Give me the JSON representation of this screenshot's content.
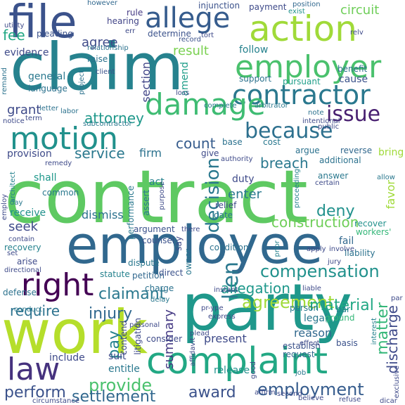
{
  "words": [
    {
      "text": "contract",
      "color": "#5ec962"
    },
    {
      "text": "employee",
      "color": "#31688e"
    },
    {
      "text": "claim",
      "color": "#26828e"
    },
    {
      "text": "party",
      "color": "#1f988b"
    },
    {
      "text": "work",
      "color": "#b5de2b"
    },
    {
      "text": "complaint",
      "color": "#22a884"
    },
    {
      "text": "file",
      "color": "#3b528b"
    },
    {
      "text": "action",
      "color": "#a0da39"
    },
    {
      "text": "employer",
      "color": "#4ac16d"
    },
    {
      "text": "contractor",
      "color": "#2a788e"
    },
    {
      "text": "damage",
      "color": "#3fbc73"
    },
    {
      "text": "motion",
      "color": "#21918c"
    },
    {
      "text": "allege",
      "color": "#365c8d"
    },
    {
      "text": "law",
      "color": "#46327e"
    },
    {
      "text": "right",
      "color": "#440154"
    },
    {
      "text": "issue",
      "color": "#481f70"
    },
    {
      "text": "because",
      "color": "#2d708e"
    },
    {
      "text": "lien",
      "color": "#2a788e"
    },
    {
      "text": "agreement",
      "color": "#a0da39"
    },
    {
      "text": "compensation",
      "color": "#21918c"
    },
    {
      "text": "employment",
      "color": "#365c8d"
    },
    {
      "text": "provide",
      "color": "#4ac16d"
    },
    {
      "text": "settlement",
      "color": "#31688e"
    },
    {
      "text": "award",
      "color": "#3b528b"
    },
    {
      "text": "perform",
      "color": "#3b528b"
    },
    {
      "text": "matter",
      "color": "#35b779"
    },
    {
      "text": "discharge",
      "color": "#3e4a89"
    },
    {
      "text": "summary",
      "color": "#443983"
    },
    {
      "text": "pay",
      "color": "#26828e"
    },
    {
      "text": "injury",
      "color": "#31688e"
    },
    {
      "text": "require",
      "color": "#2c728e"
    },
    {
      "text": "claimant",
      "color": "#2a788e"
    },
    {
      "text": "material",
      "color": "#22a884"
    },
    {
      "text": "allegation",
      "color": "#1f988b"
    },
    {
      "text": "construction",
      "color": "#6ece58"
    },
    {
      "text": "decision",
      "color": "#2a788e"
    },
    {
      "text": "deny",
      "color": "#21918c"
    },
    {
      "text": "breach",
      "color": "#2a788e"
    },
    {
      "text": "count",
      "color": "#365c8d"
    },
    {
      "text": "firm",
      "color": "#2c728e"
    },
    {
      "text": "service",
      "color": "#2a788e"
    },
    {
      "text": "attorney",
      "color": "#1f988b"
    },
    {
      "text": "grant",
      "color": "#3e4a89"
    },
    {
      "text": "section",
      "color": "#414487"
    },
    {
      "text": "result",
      "color": "#7ad151"
    },
    {
      "text": "agree",
      "color": "#3e4a89"
    },
    {
      "text": "fee",
      "color": "#22a884"
    },
    {
      "text": "evidence",
      "color": "#3e4a89"
    },
    {
      "text": "determine",
      "color": "#3b528b"
    },
    {
      "text": "circuit",
      "color": "#6ece58"
    },
    {
      "text": "payment",
      "color": "#3e4a89"
    },
    {
      "text": "follow",
      "color": "#26828e"
    },
    {
      "text": "benefit",
      "color": "#2c728e"
    },
    {
      "text": "cause",
      "color": "#3b528b"
    },
    {
      "text": "support",
      "color": "#2c728e"
    },
    {
      "text": "pursuant",
      "color": "#1f9e89"
    },
    {
      "text": "general",
      "color": "#2a788e"
    },
    {
      "text": "language",
      "color": "#2c728e"
    },
    {
      "text": "pleading",
      "color": "#3b528b"
    },
    {
      "text": "raise",
      "color": "#2c728e"
    },
    {
      "text": "hearing",
      "color": "#414487"
    },
    {
      "text": "rule",
      "color": "#443983"
    },
    {
      "text": "injunction",
      "color": "#3b528b"
    },
    {
      "text": "position",
      "color": "#31688e"
    },
    {
      "text": "exist",
      "color": "#21918c"
    },
    {
      "text": "however",
      "color": "#31688e"
    },
    {
      "text": "relationship",
      "color": "#2c728e"
    },
    {
      "text": "record",
      "color": "#3b528b"
    },
    {
      "text": "amend",
      "color": "#1f9e89"
    },
    {
      "text": "act",
      "color": "#26828e"
    },
    {
      "text": "enter",
      "color": "#2a788e"
    },
    {
      "text": "duty",
      "color": "#3e4a89"
    },
    {
      "text": "shall",
      "color": "#1f988b"
    },
    {
      "text": "dismiss",
      "color": "#2c728e"
    },
    {
      "text": "seek",
      "color": "#3e4a89"
    },
    {
      "text": "receive",
      "color": "#21918c"
    },
    {
      "text": "recovery",
      "color": "#26828e"
    },
    {
      "text": "recover",
      "color": "#21918c"
    },
    {
      "text": "workers'",
      "color": "#35b779"
    },
    {
      "text": "liability",
      "color": "#2c728e"
    },
    {
      "text": "fail",
      "color": "#31688e"
    },
    {
      "text": "arise",
      "color": "#3e4a89"
    },
    {
      "text": "dispute",
      "color": "#2a788e"
    },
    {
      "text": "petition",
      "color": "#31688e"
    },
    {
      "text": "direct",
      "color": "#3b528b"
    },
    {
      "text": "statute",
      "color": "#26828e"
    },
    {
      "text": "condition",
      "color": "#2c728e"
    },
    {
      "text": "legal",
      "color": "#2a788e"
    },
    {
      "text": "person",
      "color": "#2a788e"
    },
    {
      "text": "bar",
      "color": "#26828e"
    },
    {
      "text": "ground",
      "color": "#35b779"
    },
    {
      "text": "reason",
      "color": "#31688e"
    },
    {
      "text": "present",
      "color": "#3e4a89"
    },
    {
      "text": "establish",
      "color": "#3b528b"
    },
    {
      "text": "request",
      "color": "#31688e"
    },
    {
      "text": "basis",
      "color": "#3b528b"
    },
    {
      "text": "release",
      "color": "#21918c"
    },
    {
      "text": "suit",
      "color": "#3e4a89"
    },
    {
      "text": "entitle",
      "color": "#2a788e"
    },
    {
      "text": "include",
      "color": "#3e4a89"
    },
    {
      "text": "consider",
      "color": "#3e4a89"
    },
    {
      "text": "litigation",
      "color": "#3e4a89"
    },
    {
      "text": "contend",
      "color": "#3e4a89"
    },
    {
      "text": "argue",
      "color": "#2c728e"
    },
    {
      "text": "reverse",
      "color": "#31688e"
    },
    {
      "text": "additional",
      "color": "#2c728e"
    },
    {
      "text": "relief",
      "color": "#3e4a89"
    },
    {
      "text": "date",
      "color": "#2a788e"
    },
    {
      "text": "give",
      "color": "#3e4a89"
    },
    {
      "text": "base",
      "color": "#2c728e"
    },
    {
      "text": "answer",
      "color": "#2a788e"
    },
    {
      "text": "allow",
      "color": "#2a788e"
    },
    {
      "text": "argument",
      "color": "#3b528b"
    },
    {
      "text": "counsel",
      "color": "#3b528b"
    },
    {
      "text": "performance",
      "color": "#2a788e"
    },
    {
      "text": "assert",
      "color": "#2a788e"
    },
    {
      "text": "common",
      "color": "#2a788e"
    },
    {
      "text": "day",
      "color": "#2a788e"
    },
    {
      "text": "provision",
      "color": "#3e4a89"
    },
    {
      "text": "delay",
      "color": "#2a788e"
    },
    {
      "text": "charge",
      "color": "#2c728e"
    },
    {
      "text": "defense",
      "color": "#2c728e"
    },
    {
      "text": "conduct",
      "color": "#2a788e"
    },
    {
      "text": "note",
      "color": "#2c728e"
    },
    {
      "text": "cost",
      "color": "#2a788e"
    },
    {
      "text": "complete",
      "color": "#2a788e"
    },
    {
      "text": "arbitrator",
      "color": "#2a788e"
    },
    {
      "text": "subcontractor",
      "color": "#2a788e"
    },
    {
      "text": "notice",
      "color": "#3e4a89"
    },
    {
      "text": "term",
      "color": "#3e4a89"
    },
    {
      "text": "letter",
      "color": "#2c728e"
    },
    {
      "text": "labor",
      "color": "#2c728e"
    },
    {
      "text": "client",
      "color": "#3b528b"
    },
    {
      "text": "project",
      "color": "#2c728e"
    },
    {
      "text": "remand",
      "color": "#2c728e"
    },
    {
      "text": "owner",
      "color": "#2a788e"
    },
    {
      "text": "say",
      "color": "#3e4a89"
    },
    {
      "text": "instant",
      "color": "#3e4a89"
    },
    {
      "text": "good",
      "color": "#3e4a89"
    },
    {
      "text": "job",
      "color": "#2a788e"
    },
    {
      "text": "affirm",
      "color": "#3e4a89"
    },
    {
      "text": "second",
      "color": "#3e4a89"
    },
    {
      "text": "tort",
      "color": "#3e4a89"
    },
    {
      "text": "err",
      "color": "#3e4a89"
    },
    {
      "text": "loss",
      "color": "#3e4a89"
    },
    {
      "text": "bring",
      "color": "#a0da39"
    },
    {
      "text": "favor",
      "color": "#a0da39"
    },
    {
      "text": "prior",
      "color": "#26828e"
    },
    {
      "text": "interest",
      "color": "#26828e"
    },
    {
      "text": "proceeding",
      "color": "#26828e"
    },
    {
      "text": "architect",
      "color": "#26828e"
    },
    {
      "text": "purpose",
      "color": "#3e4a89"
    },
    {
      "text": "there",
      "color": "#3e4a89"
    },
    {
      "text": "contain",
      "color": "#3e4a89"
    },
    {
      "text": "apply",
      "color": "#3e4a89"
    },
    {
      "text": "jury",
      "color": "#3e4a89"
    },
    {
      "text": "involve",
      "color": "#3e4a89"
    },
    {
      "text": "remedy",
      "color": "#3e4a89"
    },
    {
      "text": "public",
      "color": "#3e4a89"
    },
    {
      "text": "intentional",
      "color": "#3e4a89"
    },
    {
      "text": "certain",
      "color": "#3e4a89"
    },
    {
      "text": "employ",
      "color": "#3e4a89"
    },
    {
      "text": "personal",
      "color": "#3e4a89"
    },
    {
      "text": "effect",
      "color": "#3e4a89"
    },
    {
      "text": "plead",
      "color": "#3e4a89"
    },
    {
      "text": "circumstance",
      "color": "#3e4a89"
    },
    {
      "text": "believe",
      "color": "#3e4a89"
    },
    {
      "text": "refuse",
      "color": "#3e4a89"
    },
    {
      "text": "par",
      "color": "#3e4a89"
    },
    {
      "text": "utility",
      "color": "#3e4a89"
    },
    {
      "text": "relv",
      "color": "#3e4a89"
    },
    {
      "text": "authority",
      "color": "#3e4a89"
    },
    {
      "text": "set",
      "color": "#3e4a89"
    },
    {
      "text": "express",
      "color": "#3e4a89"
    },
    {
      "text": "directional",
      "color": "#3e4a89"
    },
    {
      "text": "liable",
      "color": "#3e4a89"
    },
    {
      "text": "affidavit",
      "color": "#3e4a89"
    },
    {
      "text": "exclusive",
      "color": "#3e4a89"
    },
    {
      "text": "pr-ype",
      "color": "#3e4a89"
    },
    {
      "text": "dicar",
      "color": "#3e4a89"
    }
  ]
}
